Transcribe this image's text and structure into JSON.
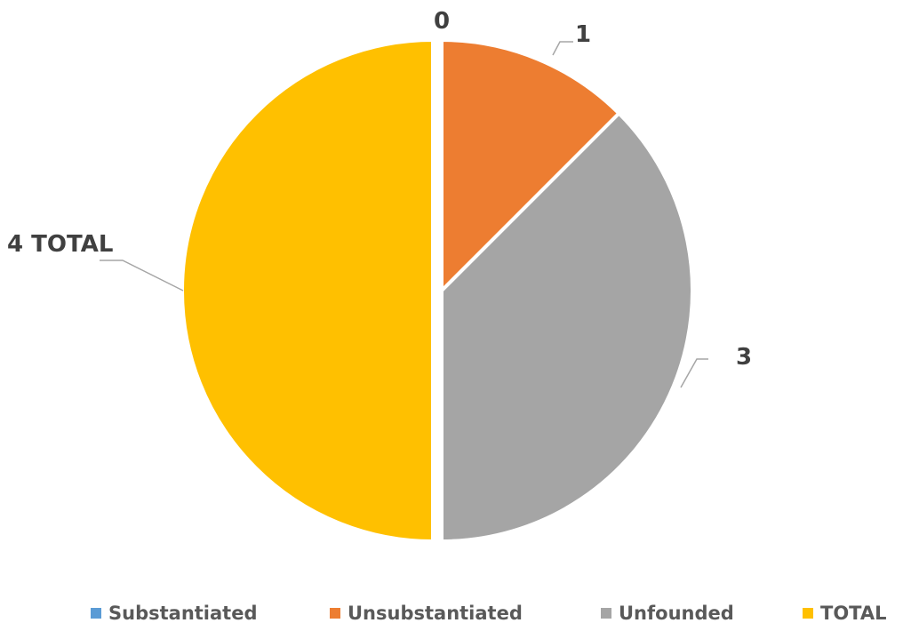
{
  "chart_data": {
    "type": "pie",
    "categories": [
      "Substantiated",
      "Unsubstantiated",
      "Unfounded",
      "TOTAL"
    ],
    "values": [
      0,
      1,
      3,
      4
    ],
    "data_labels": [
      "0",
      "1",
      "3",
      "4 TOTAL"
    ],
    "colors": [
      "#5b9bd5",
      "#ed7d31",
      "#a5a5a5",
      "#ffc000"
    ],
    "exploded_slice": "TOTAL",
    "legend_position": "bottom"
  }
}
